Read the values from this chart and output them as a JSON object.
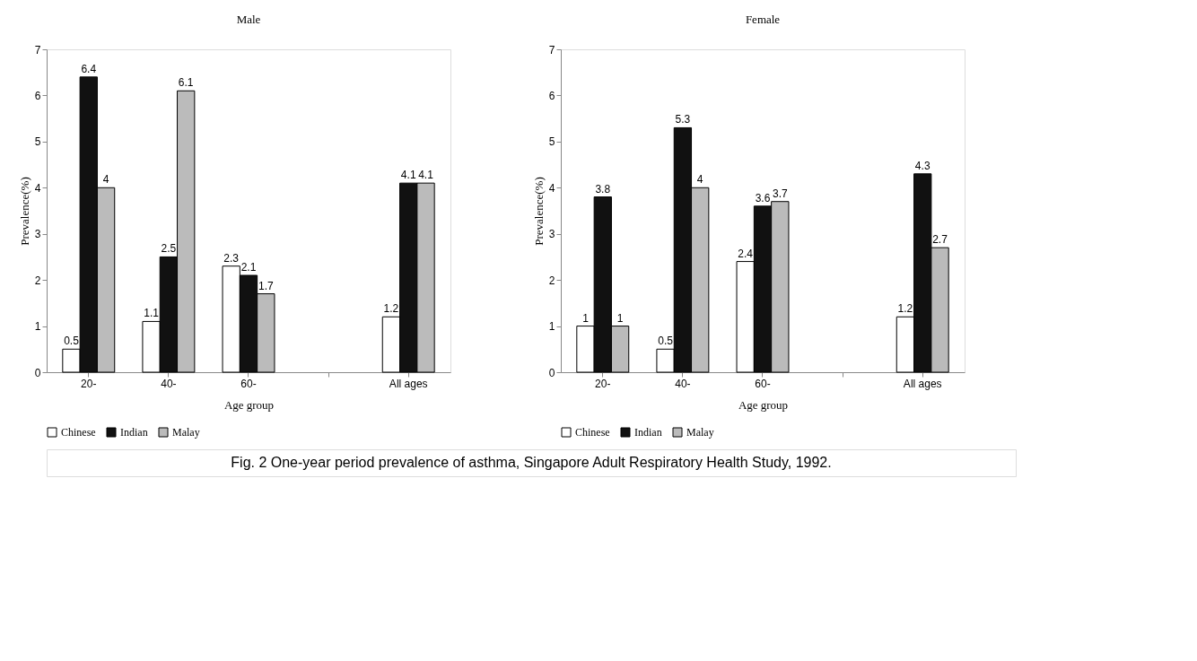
{
  "chart_data": [
    {
      "type": "bar",
      "title": "Male",
      "xlabel": "Age group",
      "ylabel": "Prevalence(%)",
      "categories": [
        "20-",
        "40-",
        "60-",
        null,
        "All ages"
      ],
      "ylim": [
        0,
        7
      ],
      "yticks": [
        0,
        1,
        2,
        3,
        4,
        5,
        6,
        7
      ],
      "grid": false,
      "legend": "bottom",
      "data_labels": true,
      "series": [
        {
          "name": "Chinese",
          "color": "#ffffff",
          "values": [
            0.5,
            1.1,
            2.3,
            null,
            1.2
          ]
        },
        {
          "name": "Indian",
          "color": "#111111",
          "values": [
            6.4,
            2.5,
            2.1,
            null,
            4.1
          ]
        },
        {
          "name": "Malay",
          "color": "#bbbbbb",
          "values": [
            4,
            6.1,
            1.7,
            null,
            4.1
          ]
        }
      ],
      "annotations": [
        "Fig. 2    One-year period prevalence of asthma, Singapore Adult Respiratory Health Study, 1992."
      ]
    },
    {
      "type": "bar",
      "title": "Female",
      "xlabel": "Age group",
      "ylabel": "Prevalence(%)",
      "categories": [
        "20-",
        "40-",
        "60-",
        null,
        "All ages"
      ],
      "ylim": [
        0,
        7
      ],
      "yticks": [
        0,
        1,
        2,
        3,
        4,
        5,
        6,
        7
      ],
      "grid": false,
      "legend": "bottom",
      "data_labels": true,
      "series": [
        {
          "name": "Chinese",
          "color": "#ffffff",
          "values": [
            1,
            0.5,
            2.4,
            null,
            1.2
          ]
        },
        {
          "name": "Indian",
          "color": "#111111",
          "values": [
            3.8,
            5.3,
            3.6,
            null,
            4.3
          ]
        },
        {
          "name": "Malay",
          "color": "#bbbbbb",
          "values": [
            1,
            4,
            3.7,
            null,
            2.7
          ]
        }
      ]
    }
  ]
}
